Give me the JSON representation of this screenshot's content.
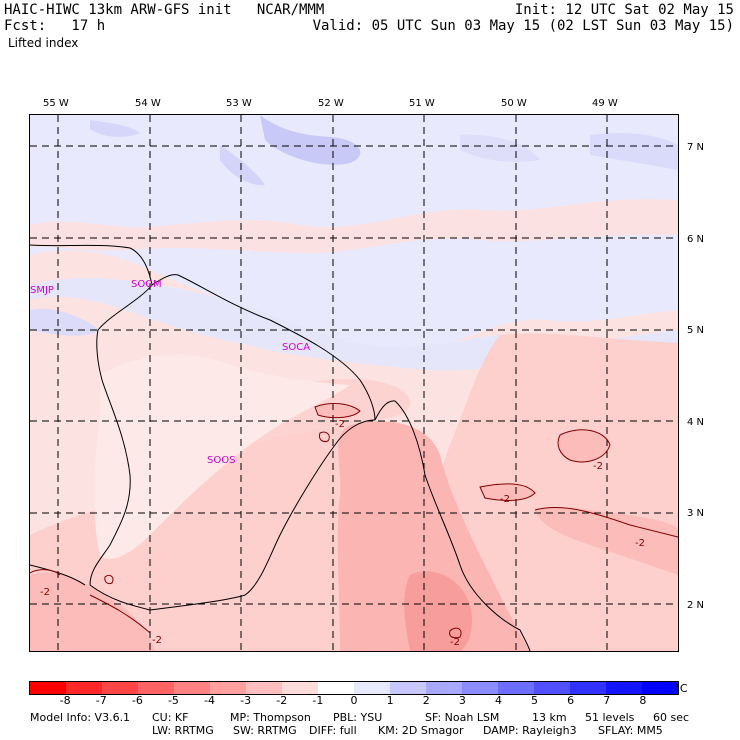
{
  "header": {
    "line1_left": "HAIC-HIWC 13km ARW-GFS init   NCAR/MMM",
    "line1_right": "Init: 12 UTC Sat 02 May 15",
    "line2_left": "Fcst:   17 h",
    "line2_right": "Valid: 05 UTC Sun 03 May 15 (02 LST Sun 03 May 15)",
    "field": "Lifted index"
  },
  "map": {
    "lon_labels": [
      "55 W",
      "54 W",
      "53 W",
      "52 W",
      "51 W",
      "50 W",
      "49 W"
    ],
    "lat_labels": [
      "7 N",
      "6 N",
      "5 N",
      "4 N",
      "3 N",
      "2 N"
    ],
    "stations": [
      "SMJP",
      "SOGM",
      "SOCA",
      "SOOS"
    ],
    "contour_labels": [
      "-2",
      "-2",
      "-2",
      "-2",
      "-2",
      "-2",
      "-2"
    ]
  },
  "colorbar": {
    "colors": [
      "#ff0000",
      "#ff2828",
      "#ff4646",
      "#ff6464",
      "#fe8282",
      "#fea0a0",
      "#ffbebe",
      "#fddcdc",
      "#ffffff",
      "#e8e8fe",
      "#c8c8fe",
      "#a8a8fe",
      "#8c8cfe",
      "#6e6efe",
      "#5050fe",
      "#3232fe",
      "#1414fe",
      "#0000fe"
    ],
    "ticks": [
      "-8",
      "-7",
      "-6",
      "-5",
      "-4",
      "-3",
      "-2",
      "-1",
      "0",
      "1",
      "2",
      "3",
      "4",
      "5",
      "6",
      "7",
      "8"
    ],
    "unit": "°C"
  },
  "footer": {
    "model_info": "Model Info: V3.6.1",
    "cu": "CU: KF",
    "mp": "MP: Thompson",
    "pbl": "PBL: YSU",
    "sf": "SF: Noah LSM",
    "res": "13 km",
    "levels": "51 levels",
    "dt": "60 sec",
    "lw": "LW: RRTMG",
    "sw": "SW: RRTMG",
    "diff": "DIFF: full",
    "km": "KM: 2D Smagor",
    "damp": "DAMP: Rayleigh3",
    "sflay": "SFLAY: MM5"
  }
}
